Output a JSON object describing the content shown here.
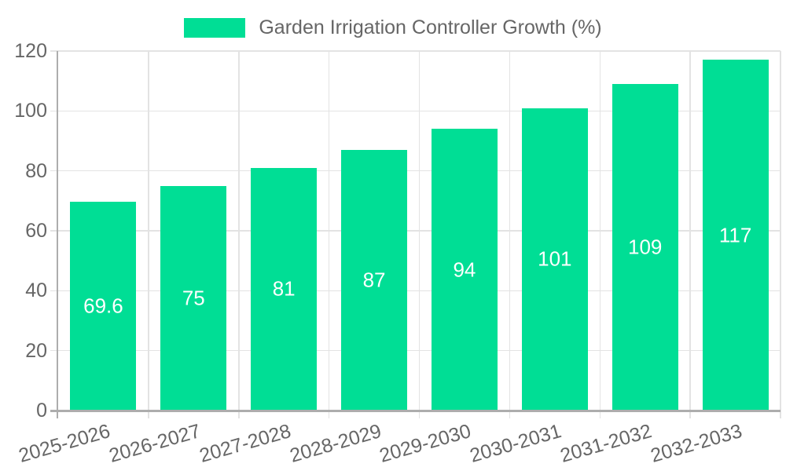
{
  "chart_data": {
    "type": "bar",
    "title": "Garden Irrigation Controller Growth (%)",
    "categories": [
      "2025-2026",
      "2026-2027",
      "2027-2028",
      "2028-2029",
      "2029-2030",
      "2030-2031",
      "2031-2032",
      "2032-2033"
    ],
    "values": [
      69.6,
      75,
      81,
      87,
      94,
      101,
      109,
      117
    ],
    "value_labels": [
      "69.6",
      "75",
      "81",
      "87",
      "94",
      "101",
      "109",
      "117"
    ],
    "xlabel": "",
    "ylabel": "",
    "ylim": [
      0,
      120
    ],
    "yticks": [
      0,
      20,
      40,
      60,
      80,
      100,
      120
    ],
    "grid": true,
    "legend_position": "top-center",
    "colors": {
      "bar": "#00de95",
      "bar_value_text": "#ffffff",
      "axis_text": "#666666",
      "axis_line": "#adadad",
      "gridline": "#e3e3e3",
      "background": "#ffffff"
    }
  }
}
